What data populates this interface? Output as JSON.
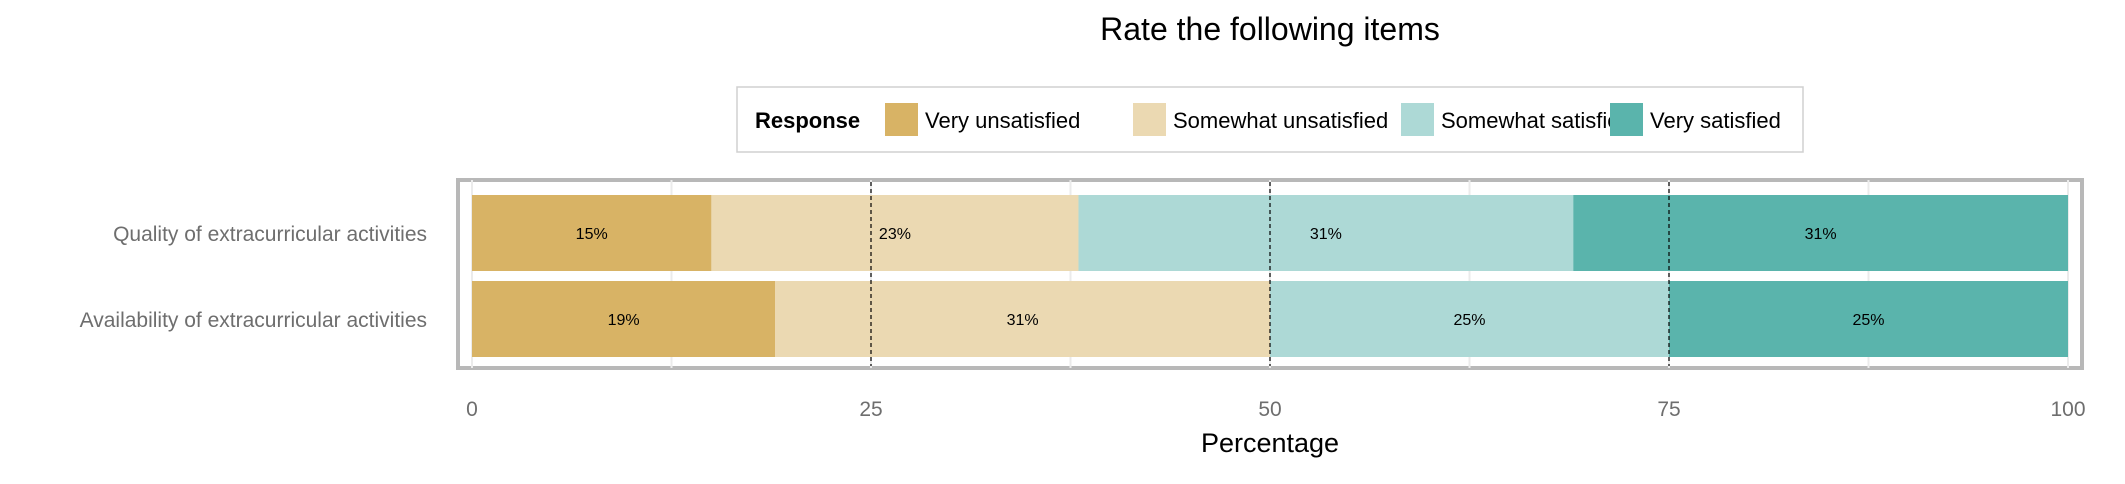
{
  "chart_data": {
    "type": "bar",
    "orientation": "horizontal",
    "stacked": true,
    "title": "Rate the following items",
    "xlabel": "Percentage",
    "ylabel": "",
    "xlim": [
      0,
      100
    ],
    "x_ticks": [
      0,
      25,
      50,
      75,
      100
    ],
    "reference_lines": [
      25,
      50,
      75
    ],
    "grid": true,
    "legend_position": "top",
    "legend_title": "Response",
    "categories": [
      "Quality of extracurricular activities",
      "Availability of extracurricular activities"
    ],
    "series": [
      {
        "name": "Very unsatisfied",
        "color": "#d8b365",
        "values": [
          15,
          19
        ],
        "labels": [
          "15%",
          "19%"
        ]
      },
      {
        "name": "Somewhat unsatisfied",
        "color": "#ebd9b2",
        "values": [
          23,
          31
        ],
        "labels": [
          "23%",
          "31%"
        ]
      },
      {
        "name": "Somewhat satisfied",
        "color": "#add9d6",
        "values": [
          31,
          25
        ],
        "labels": [
          "31%",
          "25%"
        ]
      },
      {
        "name": "Very satisfied",
        "color": "#5ab4ac",
        "values": [
          31,
          25
        ],
        "labels": [
          "31%",
          "25%"
        ]
      }
    ]
  }
}
